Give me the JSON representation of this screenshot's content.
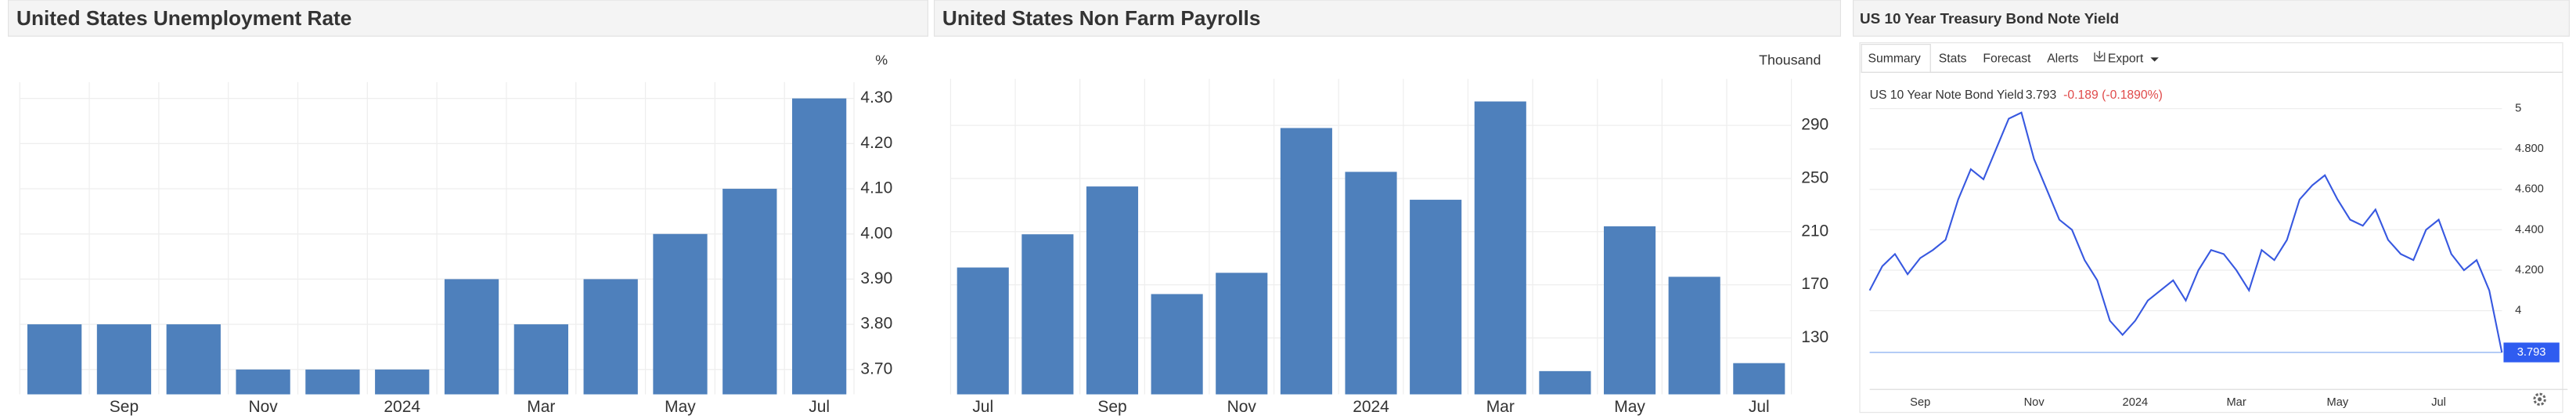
{
  "chart_data": [
    {
      "type": "bar",
      "title": "United States Unemployment Rate",
      "unit": "%",
      "categories": [
        null,
        "Sep",
        null,
        "Nov",
        null,
        "2024",
        null,
        "Mar",
        null,
        "May",
        null,
        "Jul"
      ],
      "values": [
        3.8,
        3.8,
        3.8,
        3.7,
        3.7,
        3.7,
        3.9,
        3.8,
        3.9,
        4.0,
        4.1,
        4.3
      ],
      "color": "#4e80bc",
      "ylim": [
        3.645,
        4.336
      ],
      "yticks": [
        {
          "value": 3.7,
          "label": "3.70"
        },
        {
          "value": 3.8,
          "label": "3.80"
        },
        {
          "value": 3.9,
          "label": "3.90"
        },
        {
          "value": 4.0,
          "label": "4.00"
        },
        {
          "value": 4.1,
          "label": "4.10"
        },
        {
          "value": 4.2,
          "label": "4.20"
        },
        {
          "value": 4.3,
          "label": "4.30"
        }
      ],
      "grid": true
    },
    {
      "type": "bar",
      "title": "United States Non Farm Payrolls",
      "unit": "Thousand",
      "categories": [
        "Jul",
        null,
        "Sep",
        null,
        "Nov",
        null,
        "2024",
        null,
        "Mar",
        null,
        "May",
        null,
        "Jul"
      ],
      "values": [
        183,
        208,
        244,
        163,
        179,
        288,
        255,
        234,
        308,
        105,
        214,
        176,
        111
      ],
      "color": "#4e80bc",
      "ylim": [
        87.5,
        325
      ],
      "yticks": [
        130,
        170,
        210,
        250,
        290
      ],
      "grid": true
    },
    {
      "type": "line",
      "title": "US 10 Year Treasury Bond Note Yield",
      "tabs": [
        "Summary",
        "Stats",
        "Forecast",
        "Alerts",
        "Export"
      ],
      "series_name": "US 10 Year Note Bond Yield",
      "change": "-0.189 (-0.1890%)",
      "categories": [
        null,
        null,
        null,
        null,
        "Sep",
        null,
        null,
        null,
        null,
        null,
        null,
        null,
        null,
        "Nov",
        null,
        null,
        null,
        null,
        null,
        null,
        null,
        "2024",
        null,
        null,
        null,
        null,
        null,
        null,
        null,
        "Mar",
        null,
        null,
        null,
        null,
        null,
        null,
        null,
        "May",
        null,
        null,
        null,
        null,
        null,
        null,
        null,
        "Jul",
        null,
        null,
        null,
        null,
        null
      ],
      "values": [
        4.1,
        4.22,
        4.28,
        4.18,
        4.26,
        4.3,
        4.35,
        4.55,
        4.7,
        4.65,
        4.8,
        4.95,
        4.98,
        4.75,
        4.6,
        4.45,
        4.4,
        4.25,
        4.15,
        3.95,
        3.88,
        3.95,
        4.05,
        4.1,
        4.15,
        4.05,
        4.2,
        4.3,
        4.28,
        4.2,
        4.1,
        4.3,
        4.25,
        4.35,
        4.55,
        4.62,
        4.67,
        4.55,
        4.45,
        4.42,
        4.5,
        4.35,
        4.28,
        4.25,
        4.4,
        4.45,
        4.28,
        4.2,
        4.25,
        4.1,
        3.793
      ],
      "color": "#3758e0",
      "ylim": [
        3.61,
        5.09
      ],
      "yticks": [
        4,
        {
          "value": 4.2,
          "label": "4.200"
        },
        {
          "value": 4.4,
          "label": "4.400"
        },
        {
          "value": 4.6,
          "label": "4.600"
        },
        {
          "value": 4.8,
          "label": "4.800"
        },
        5
      ],
      "grid": true
    }
  ]
}
